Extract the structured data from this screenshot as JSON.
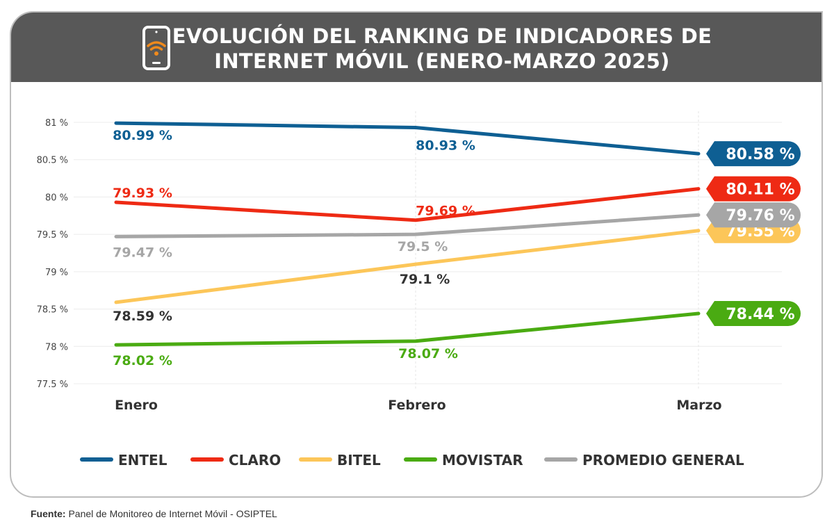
{
  "header": {
    "title_line1": "EVOLUCIÓN DEL RANKING DE INDICADORES DE",
    "title_line2": "INTERNET MÓVIL (ENERO-MARZO 2025)",
    "icon": "smartphone-wifi-icon"
  },
  "chart_data": {
    "type": "line",
    "title": "EVOLUCIÓN DEL RANKING DE INDICADORES DE INTERNET MÓVIL (ENERO-MARZO 2025)",
    "categories": [
      "Enero",
      "Febrero",
      "Marzo"
    ],
    "ylim": [
      77.5,
      81
    ],
    "yticks": [
      "81 %",
      "80.5 %",
      "80 %",
      "79.5 %",
      "79 %",
      "78.5 %",
      "78 %",
      "77.5 %"
    ],
    "ytick_values": [
      81,
      80.5,
      80,
      79.5,
      79,
      78.5,
      78,
      77.5
    ],
    "grid": true,
    "legend_position": "bottom",
    "series": [
      {
        "name": "ENTEL",
        "color": "#0e5f93",
        "values": [
          80.99,
          80.93,
          80.58
        ],
        "labels": [
          "80.99 %",
          "80.93 %",
          "80.58 %"
        ]
      },
      {
        "name": "CLARO",
        "color": "#ee2a14",
        "values": [
          79.93,
          79.69,
          80.11
        ],
        "labels": [
          "79.93 %",
          "79.69 %",
          "80.11 %"
        ]
      },
      {
        "name": "BITEL",
        "color": "#fcc659",
        "values": [
          78.59,
          79.1,
          79.55
        ],
        "labels": [
          "78.59 %",
          "79.1 %",
          "79.55 %"
        ]
      },
      {
        "name": "MOVISTAR",
        "color": "#4aab12",
        "values": [
          78.02,
          78.07,
          78.44
        ],
        "labels": [
          "78.02 %",
          "78.07 %",
          "78.44 %"
        ]
      },
      {
        "name": "PROMEDIO GENERAL",
        "color": "#a6a6a6",
        "values": [
          79.47,
          79.5,
          79.76
        ],
        "labels": [
          "79.47 %",
          "79.5 %",
          "79.76 %"
        ]
      }
    ]
  },
  "footer": {
    "label": "Fuente:",
    "text": "Panel de Monitoreo de Internet Móvil - OSIPTEL"
  }
}
